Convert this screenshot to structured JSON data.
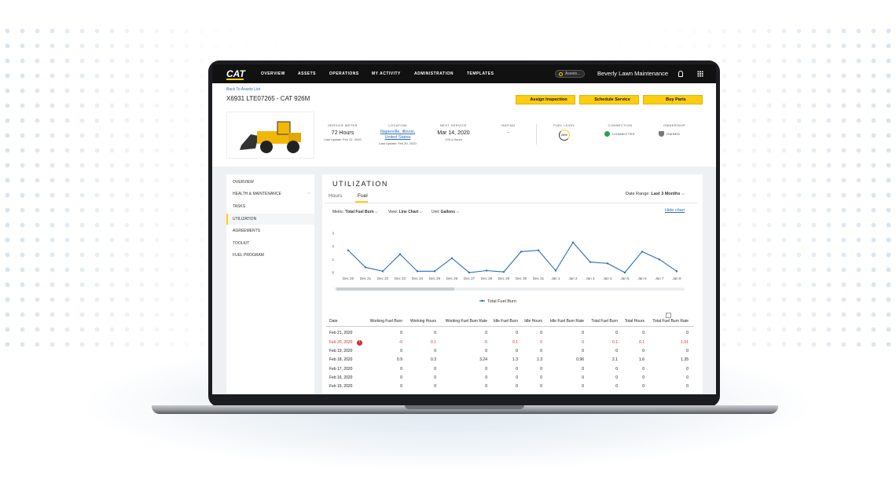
{
  "nav": {
    "logo": "CAT",
    "items": [
      "OVERVIEW",
      "ASSETS",
      "OPERATIONS",
      "MY ACTIVITY",
      "ADMINISTRATION",
      "TEMPLATES"
    ],
    "search": "Assets...",
    "account": "Beverly Lawn Maintenance"
  },
  "asset": {
    "back": "Back To Assets List",
    "title": "X6931 LTE07265 - CAT 926M",
    "actions": [
      "Assign Inspection",
      "Schedule Service",
      "Buy Parts"
    ]
  },
  "stats": [
    {
      "label": "SERVICE METER",
      "value": "72 Hours",
      "note": "Last Update: Feb 21, 2020"
    },
    {
      "label": "LOCATION",
      "value": "Naperville, Illinois, United States",
      "note": "Last Update: Feb 20, 2020"
    },
    {
      "label": "NEXT SERVICE",
      "value": "Mar 14, 2020",
      "note": "178.4 Hours"
    },
    {
      "label": "RATING",
      "value": "-"
    },
    {
      "label": "FUEL LEVEL",
      "value": "26%"
    },
    {
      "label": "CONNECTION",
      "value": "CONNECTED"
    },
    {
      "label": "OWNERSHIP",
      "value": "OWNED"
    }
  ],
  "sidebar": [
    "OVERVIEW",
    "HEALTH & MAINTENANCE",
    "TASKS",
    "UTILIZATION",
    "AGREEMENTS",
    "TOOLKIT",
    "FUEL PROGRAM"
  ],
  "utilization": {
    "title": "UTILIZATION",
    "tabs": [
      "Hours",
      "Fuel"
    ],
    "date_range_label": "Date Range:",
    "date_range": "Last 3 Months",
    "controls": [
      {
        "label": "Metric:",
        "value": "Total Fuel Burn"
      },
      {
        "label": "View:",
        "value": "Line Chart"
      },
      {
        "label": "Unit:",
        "value": "Gallons"
      }
    ],
    "hide_chart": "Hide chart"
  },
  "chart_data": {
    "type": "line",
    "categories": [
      "Dec 20",
      "Dec 21",
      "Dec 22",
      "Dec 23",
      "Dec 24",
      "Dec 25",
      "Dec 26",
      "Dec 27",
      "Dec 28",
      "Dec 29",
      "Dec 30",
      "Dec 31",
      "Jan 1",
      "Jan 2",
      "Jan 3",
      "Jan 4",
      "Jan 5",
      "Jan 6",
      "Jan 7",
      "Jan 8"
    ],
    "series": [
      {
        "name": "Total Fuel Burn",
        "color": "#2c6fb7",
        "values": [
          1.7,
          0.4,
          0.1,
          1.4,
          0.1,
          0.1,
          1.1,
          0,
          0.15,
          0.05,
          1.6,
          1.7,
          0.15,
          2.3,
          0.8,
          0.7,
          0,
          1.6,
          1.0,
          0.1
        ]
      }
    ],
    "ylim": [
      0,
      3
    ],
    "yticks": [
      0,
      1,
      2,
      3
    ],
    "grid": false
  },
  "table": {
    "headers": [
      "Date",
      "Working Fuel Burn",
      "Working Hours",
      "Working Fuel Burn Rate",
      "Idle Fuel Burn",
      "Idle Hours",
      "Idle Fuel Burn Rate",
      "Total Fuel Burn",
      "Total Hours",
      "Total Fuel Burn Rate"
    ],
    "rows": [
      [
        "Feb 21, 2020",
        "0",
        "0",
        "0",
        "0",
        "0",
        "0",
        "0",
        "0",
        "0"
      ],
      [
        "Feb 20, 2020",
        "-0",
        "0.1",
        "-0",
        "0.1",
        "0",
        "0",
        "0.1",
        "0.1",
        "1.01"
      ],
      [
        "Feb 19, 2020",
        "0",
        "0",
        "0",
        "0",
        "0",
        "0",
        "0",
        "0",
        "0"
      ],
      [
        "Feb 18, 2020",
        "0.9",
        "0.3",
        "3.24",
        "1.3",
        "1.3",
        "0.96",
        "2.1",
        "1.6",
        "1.35"
      ],
      [
        "Feb 17, 2020",
        "0",
        "0",
        "0",
        "0",
        "0",
        "0",
        "0",
        "0",
        "0"
      ],
      [
        "Feb 16, 2020",
        "0",
        "0",
        "0",
        "0",
        "0",
        "0",
        "0",
        "0",
        "0"
      ],
      [
        "Feb 15, 2020",
        "0",
        "0",
        "0",
        "0",
        "0",
        "0",
        "0",
        "0",
        "0"
      ]
    ]
  }
}
